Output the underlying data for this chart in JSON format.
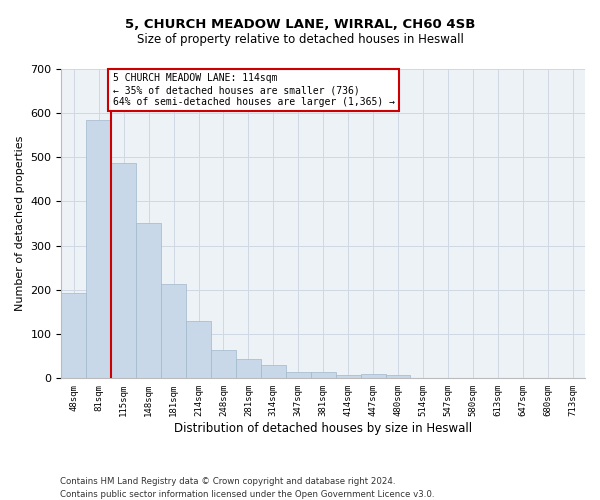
{
  "title": "5, CHURCH MEADOW LANE, WIRRAL, CH60 4SB",
  "subtitle": "Size of property relative to detached houses in Heswall",
  "xlabel": "Distribution of detached houses by size in Heswall",
  "ylabel": "Number of detached properties",
  "categories": [
    "48sqm",
    "81sqm",
    "115sqm",
    "148sqm",
    "181sqm",
    "214sqm",
    "248sqm",
    "281sqm",
    "314sqm",
    "347sqm",
    "381sqm",
    "414sqm",
    "447sqm",
    "480sqm",
    "514sqm",
    "547sqm",
    "580sqm",
    "613sqm",
    "647sqm",
    "680sqm",
    "713sqm"
  ],
  "values": [
    193,
    585,
    487,
    352,
    213,
    130,
    63,
    42,
    30,
    14,
    14,
    7,
    10,
    7,
    0,
    0,
    0,
    0,
    0,
    0,
    0
  ],
  "bar_color": "#c8d8e8",
  "bar_edge_color": "#a0b8cc",
  "grid_color": "#d0d8e4",
  "background_color": "#edf2f7",
  "red_line_index": 2,
  "annotation_text_line1": "5 CHURCH MEADOW LANE: 114sqm",
  "annotation_text_line2": "← 35% of detached houses are smaller (736)",
  "annotation_text_line3": "64% of semi-detached houses are larger (1,365) →",
  "annotation_box_color": "#ffffff",
  "annotation_box_edge": "#cc0000",
  "vline_color": "#cc0000",
  "ylim": [
    0,
    700
  ],
  "yticks": [
    0,
    100,
    200,
    300,
    400,
    500,
    600,
    700
  ],
  "footnote1": "Contains HM Land Registry data © Crown copyright and database right 2024.",
  "footnote2": "Contains public sector information licensed under the Open Government Licence v3.0."
}
